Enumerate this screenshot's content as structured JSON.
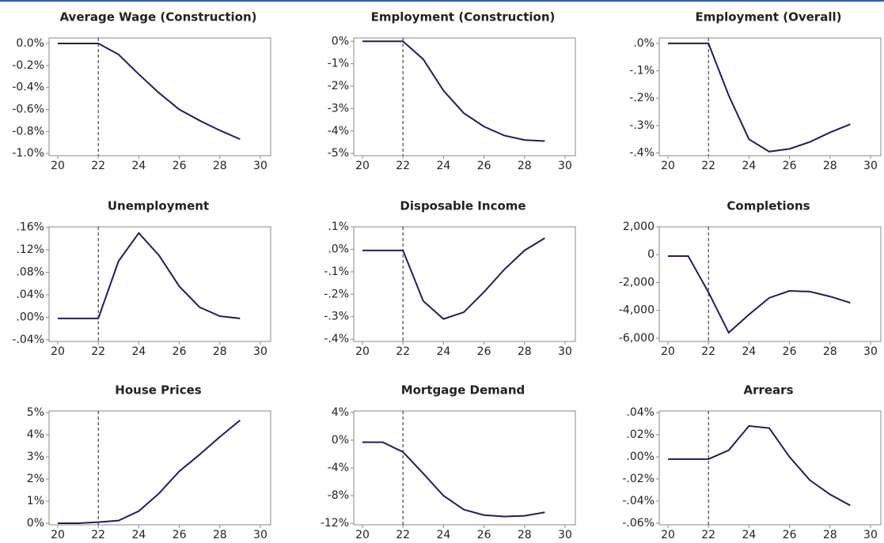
{
  "chart_data": [
    {
      "type": "line",
      "title": "Average Wage (Construction)",
      "x": [
        20,
        21,
        22,
        23,
        24,
        25,
        26,
        27,
        28,
        29
      ],
      "values": [
        0,
        0,
        0,
        -0.1,
        -0.28,
        -0.45,
        -0.6,
        -0.7,
        -0.79,
        -0.87
      ],
      "color": "#1f1f5a",
      "xlim": [
        19.57,
        30.51
      ],
      "xticks": [
        20,
        22,
        24,
        26,
        28,
        30
      ],
      "ylim": [
        -1.02,
        0.05
      ],
      "yticks": [
        {
          "value": 0,
          "label": "0.0%"
        },
        {
          "value": -0.2,
          "label": "-0.2%"
        },
        {
          "value": -0.4,
          "label": "-0.4%"
        },
        {
          "value": -0.6,
          "label": "-0.6%"
        },
        {
          "value": -0.8,
          "label": "-0.8%"
        },
        {
          "value": -1.0,
          "label": "-1.0%"
        }
      ],
      "vline": 22
    },
    {
      "type": "line",
      "title": "Employment (Construction)",
      "x": [
        20,
        21,
        22,
        23,
        24,
        25,
        26,
        27,
        28,
        29
      ],
      "values": [
        0,
        0,
        0,
        -0.8,
        -2.2,
        -3.2,
        -3.8,
        -4.2,
        -4.4,
        -4.45
      ],
      "color": "#1f1f5a",
      "xlim": [
        19.57,
        30.51
      ],
      "xticks": [
        20,
        22,
        24,
        26,
        28,
        30
      ],
      "ylim": [
        -5.1,
        0.15
      ],
      "yticks": [
        {
          "value": 0,
          "label": "0%"
        },
        {
          "value": -1,
          "label": "-1%"
        },
        {
          "value": -2,
          "label": "-2%"
        },
        {
          "value": -3,
          "label": "-3%"
        },
        {
          "value": -4,
          "label": "-4%"
        },
        {
          "value": -5,
          "label": "-5%"
        }
      ],
      "vline": 22
    },
    {
      "type": "line",
      "title": "Employment (Overall)",
      "x": [
        20,
        21,
        22,
        23,
        24,
        25,
        26,
        27,
        28,
        29
      ],
      "values": [
        0,
        0,
        0,
        -0.19,
        -0.35,
        -0.395,
        -0.385,
        -0.36,
        -0.325,
        -0.295
      ],
      "color": "#1f1f5a",
      "xlim": [
        19.57,
        30.51
      ],
      "xticks": [
        20,
        22,
        24,
        26,
        28,
        30
      ],
      "ylim": [
        -0.41,
        0.02
      ],
      "yticks": [
        {
          "value": 0,
          "label": ".0%"
        },
        {
          "value": -0.1,
          "label": "-.1%"
        },
        {
          "value": -0.2,
          "label": "-.2%"
        },
        {
          "value": -0.3,
          "label": "-.3%"
        },
        {
          "value": -0.4,
          "label": "-.4%"
        }
      ],
      "vline": 22
    },
    {
      "type": "line",
      "title": "Unemployment",
      "x": [
        20,
        21,
        22,
        23,
        24,
        25,
        26,
        27,
        28,
        29
      ],
      "values": [
        -0.002,
        -0.002,
        -0.002,
        0.1,
        0.15,
        0.11,
        0.055,
        0.018,
        0.002,
        -0.002
      ],
      "color": "#1f1f5a",
      "xlim": [
        19.57,
        30.51
      ],
      "xticks": [
        20,
        22,
        24,
        26,
        28,
        30
      ],
      "ylim": [
        -0.043,
        0.161
      ],
      "yticks": [
        {
          "value": 0.16,
          "label": ".16%"
        },
        {
          "value": 0.12,
          "label": ".12%"
        },
        {
          "value": 0.08,
          "label": ".08%"
        },
        {
          "value": 0.04,
          "label": ".04%"
        },
        {
          "value": 0,
          "label": ".00%"
        },
        {
          "value": -0.04,
          "label": "-.04%"
        }
      ],
      "vline": 22
    },
    {
      "type": "line",
      "title": "Disposable Income",
      "x": [
        20,
        21,
        22,
        23,
        24,
        25,
        26,
        27,
        28,
        29
      ],
      "values": [
        -0.005,
        -0.005,
        -0.005,
        -0.23,
        -0.31,
        -0.28,
        -0.19,
        -0.09,
        -0.005,
        0.05
      ],
      "color": "#1f1f5a",
      "xlim": [
        19.57,
        30.51
      ],
      "xticks": [
        20,
        22,
        24,
        26,
        28,
        30
      ],
      "ylim": [
        -0.41,
        0.1
      ],
      "yticks": [
        {
          "value": 0.1,
          "label": ".1%"
        },
        {
          "value": 0,
          "label": ".0%"
        },
        {
          "value": -0.1,
          "label": "-.1%"
        },
        {
          "value": -0.2,
          "label": "-.2%"
        },
        {
          "value": -0.3,
          "label": "-.3%"
        },
        {
          "value": -0.4,
          "label": "-.4%"
        }
      ],
      "vline": 22
    },
    {
      "type": "line",
      "title": "Completions",
      "x": [
        20,
        21,
        22,
        23,
        24,
        25,
        26,
        27,
        28,
        29
      ],
      "values": [
        -100,
        -100,
        -2700,
        -5600,
        -4300,
        -3100,
        -2600,
        -2650,
        -3000,
        -3450
      ],
      "color": "#1f1f5a",
      "xlim": [
        19.57,
        30.51
      ],
      "xticks": [
        20,
        22,
        24,
        26,
        28,
        30
      ],
      "ylim": [
        -6230,
        2000
      ],
      "yticks": [
        {
          "value": 2000,
          "label": "2,000"
        },
        0,
        {
          "value": -2000,
          "label": "-2,000"
        },
        {
          "value": -4000,
          "label": "-4,000"
        },
        {
          "value": -6000,
          "label": "-6,000"
        }
      ],
      "vline": 22
    },
    {
      "type": "line",
      "title": "House Prices",
      "x": [
        20,
        21,
        22,
        23,
        24,
        25,
        26,
        27,
        28,
        29
      ],
      "values": [
        0,
        0,
        0.05,
        0.12,
        0.55,
        1.35,
        2.35,
        3.1,
        3.9,
        4.65
      ],
      "color": "#1f1f5a",
      "xlim": [
        19.57,
        30.51
      ],
      "xticks": [
        20,
        22,
        24,
        26,
        28,
        30
      ],
      "ylim": [
        -0.07,
        5.07
      ],
      "yticks": [
        {
          "value": 5,
          "label": "5%"
        },
        {
          "value": 4,
          "label": "4%"
        },
        {
          "value": 3,
          "label": "3%"
        },
        {
          "value": 2,
          "label": "2%"
        },
        {
          "value": 1,
          "label": "1%"
        },
        {
          "value": 0,
          "label": "0%"
        }
      ],
      "vline": 22
    },
    {
      "type": "line",
      "title": "Mortgage Demand",
      "x": [
        20,
        21,
        22,
        23,
        24,
        25,
        26,
        27,
        28,
        29
      ],
      "values": [
        -0.3,
        -0.3,
        -1.7,
        -4.8,
        -8,
        -10,
        -10.8,
        -11,
        -10.9,
        -10.4
      ],
      "color": "#1f1f5a",
      "xlim": [
        19.57,
        30.51
      ],
      "xticks": [
        20,
        22,
        24,
        26,
        28,
        30
      ],
      "ylim": [
        -12.2,
        4.2
      ],
      "yticks": [
        {
          "value": 4,
          "label": "4%"
        },
        {
          "value": 0,
          "label": "0%"
        },
        {
          "value": -4,
          "label": "-4%"
        },
        {
          "value": -8,
          "label": "-8%"
        },
        {
          "value": -12,
          "label": "-12%"
        }
      ],
      "vline": 22
    },
    {
      "type": "line",
      "title": "Arrears",
      "x": [
        20,
        21,
        22,
        23,
        24,
        25,
        26,
        27,
        28,
        29
      ],
      "values": [
        -0.002,
        -0.002,
        -0.002,
        0.006,
        0.028,
        0.026,
        0,
        -0.021,
        -0.034,
        -0.044
      ],
      "color": "#1f1f5a",
      "xlim": [
        19.57,
        30.51
      ],
      "xticks": [
        20,
        22,
        24,
        26,
        28,
        30
      ],
      "ylim": [
        -0.0615,
        0.0415
      ],
      "yticks": [
        {
          "value": 0.04,
          "label": ".04%"
        },
        {
          "value": 0.02,
          "label": ".02%"
        },
        {
          "value": 0,
          "label": ".00%"
        },
        {
          "value": -0.02,
          "label": "-.02%"
        },
        {
          "value": -0.04,
          "label": "-.04%"
        },
        {
          "value": -0.06,
          "label": "-.06%"
        }
      ],
      "vline": 22
    }
  ]
}
